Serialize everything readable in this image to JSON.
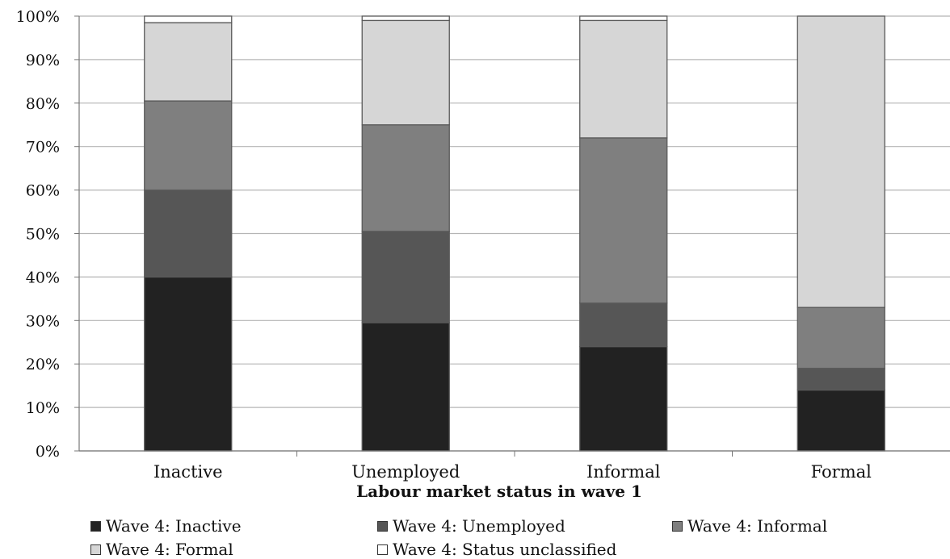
{
  "chart_data": {
    "type": "bar",
    "stacked": true,
    "percent": true,
    "categories": [
      "Inactive",
      "Unemployed",
      "Informal",
      "Formal"
    ],
    "series": [
      {
        "name": "Wave 4: Inactive",
        "color": "#222222",
        "values": [
          40,
          29.5,
          24,
          14
        ]
      },
      {
        "name": "Wave 4: Unemployed",
        "color": "#565656",
        "values": [
          20,
          21,
          10,
          5
        ]
      },
      {
        "name": "Wave 4: Informal",
        "color": "#7f7f7f",
        "values": [
          20.5,
          24.5,
          38,
          14
        ]
      },
      {
        "name": "Wave 4: Formal",
        "color": "#d6d6d6",
        "values": [
          18,
          24,
          27,
          67
        ]
      },
      {
        "name": "Wave 4: Status unclassified",
        "color": "#ffffff",
        "values": [
          1.5,
          1,
          1,
          0
        ]
      }
    ],
    "xlabel": "Labour market status in wave 1",
    "ylabel": "",
    "ylim": [
      0,
      100
    ],
    "yticks": [
      "0%",
      "10%",
      "20%",
      "30%",
      "40%",
      "50%",
      "60%",
      "70%",
      "80%",
      "90%",
      "100%"
    ],
    "grid": true,
    "legend_position": "bottom"
  }
}
